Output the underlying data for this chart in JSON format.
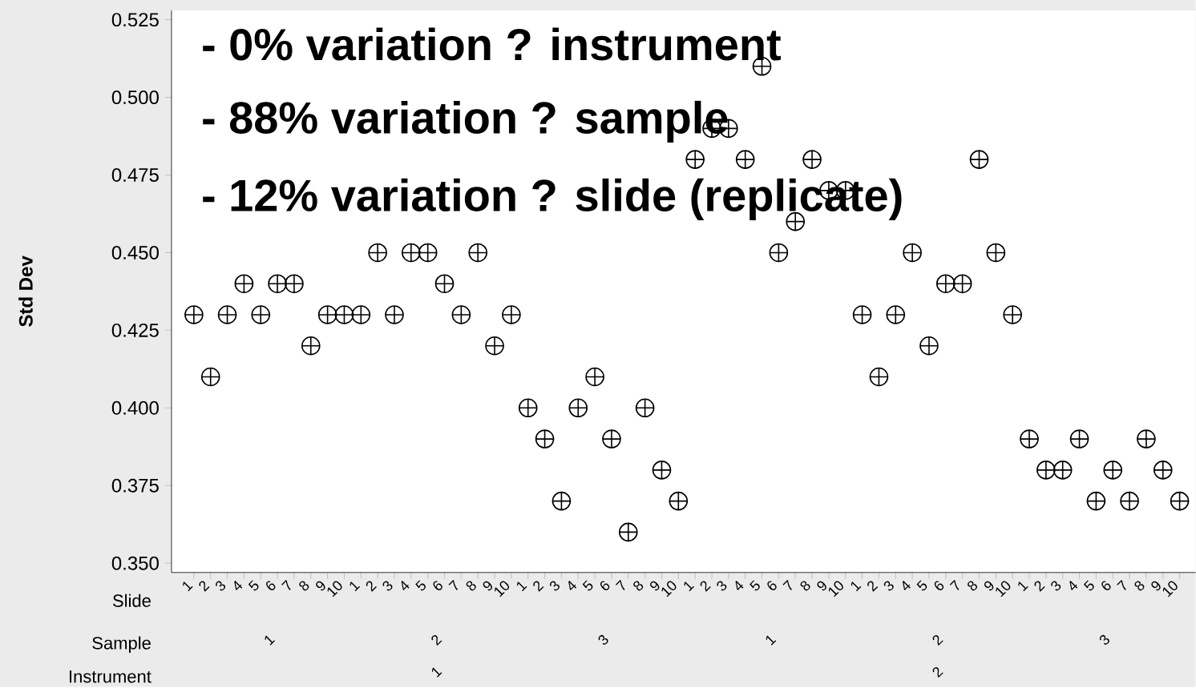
{
  "chart_data": {
    "type": "scatter",
    "ylabel": "Std Dev",
    "xlabel": "Slide",
    "categories": [
      "1",
      "2",
      "3",
      "4",
      "5",
      "6",
      "7",
      "8",
      "9",
      "10",
      "1",
      "2",
      "3",
      "4",
      "5",
      "6",
      "7",
      "8",
      "9",
      "10",
      "1",
      "2",
      "3",
      "4",
      "5",
      "6",
      "7",
      "8",
      "9",
      "10",
      "1",
      "2",
      "3",
      "4",
      "5",
      "6",
      "7",
      "8",
      "9",
      "10",
      "1",
      "2",
      "3",
      "4",
      "5",
      "6",
      "7",
      "8",
      "9",
      "10",
      "1",
      "2",
      "3",
      "4",
      "5",
      "6",
      "7",
      "8",
      "9",
      "10"
    ],
    "values": [
      0.43,
      0.41,
      0.43,
      0.44,
      0.43,
      0.44,
      0.44,
      0.42,
      0.43,
      0.43,
      0.43,
      0.45,
      0.43,
      0.45,
      0.45,
      0.44,
      0.43,
      0.45,
      0.42,
      0.43,
      0.4,
      0.39,
      0.37,
      0.4,
      0.41,
      0.39,
      0.36,
      0.4,
      0.38,
      0.37,
      0.48,
      0.49,
      0.49,
      0.48,
      0.51,
      0.45,
      0.46,
      0.48,
      0.47,
      0.47,
      0.43,
      0.41,
      0.43,
      0.45,
      0.42,
      0.44,
      0.44,
      0.48,
      0.45,
      0.43,
      0.39,
      0.38,
      0.38,
      0.39,
      0.37,
      0.38,
      0.37,
      0.39,
      0.38,
      0.37
    ],
    "color": "#000000",
    "marker": "cross",
    "ylim": [
      0.347,
      0.528
    ],
    "yticks": [
      {
        "value": 0.35,
        "label": "0.350"
      },
      {
        "value": 0.375,
        "label": "0.375"
      },
      {
        "value": 0.4,
        "label": "0.400"
      },
      {
        "value": 0.425,
        "label": "0.425"
      },
      {
        "value": 0.45,
        "label": "0.450"
      },
      {
        "value": 0.475,
        "label": "0.475"
      },
      {
        "value": 0.5,
        "label": "0.500"
      },
      {
        "value": 0.525,
        "label": "0.525"
      }
    ],
    "annotations": [
      "- 0% variation ?  instrument",
      "- 88% variation ?  sample",
      "- 12% variation ?  slide (replicate)",
      "Sample",
      "1",
      "2",
      "3",
      "1",
      "2",
      "3",
      "Instrument",
      "1",
      "2"
    ]
  }
}
